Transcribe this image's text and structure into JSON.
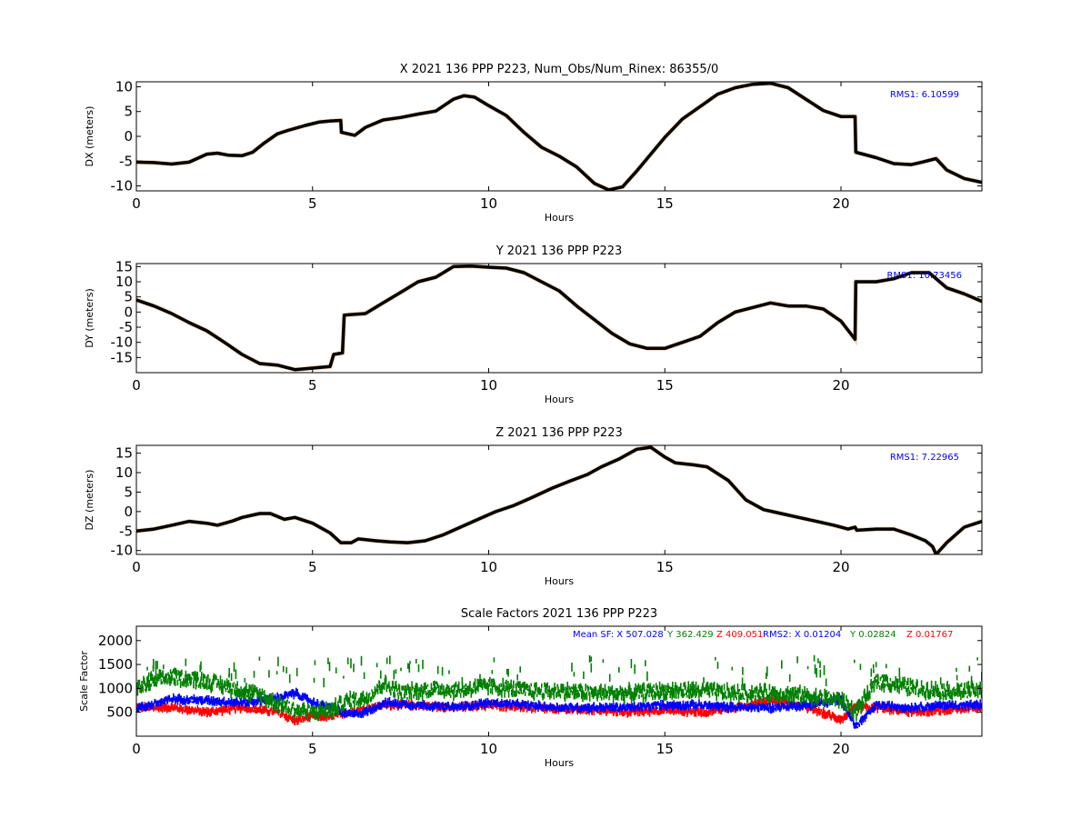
{
  "chart_data": [
    {
      "type": "line",
      "title": "X 2021 136 PPP  P223, Num_Obs/Num_Rinex: 86355/0",
      "xlabel": "Hours",
      "ylabel": "DX (meters)",
      "xlim": [
        0,
        24
      ],
      "ylim": [
        -11,
        11
      ],
      "xticks": [
        "0",
        "5",
        "10",
        "15",
        "20"
      ],
      "yticks": [
        "10",
        "5",
        "0",
        "-5",
        "-10"
      ],
      "annotation": {
        "text": "RMS1:  6.10599",
        "color": "#0000ff"
      },
      "series": [
        {
          "color": "#000000",
          "x": [
            0,
            0.5,
            1,
            1.5,
            2,
            2.3,
            2.6,
            3,
            3.3,
            3.6,
            4,
            4.3,
            4.8,
            5.2,
            5.5,
            5.8,
            5.82,
            6.2,
            6.5,
            7,
            7.5,
            8,
            8.5,
            9,
            9.3,
            9.6,
            10,
            10.5,
            11,
            11.5,
            12,
            12.5,
            13,
            13.4,
            13.8,
            14.2,
            14.6,
            15,
            15.5,
            16,
            16.5,
            17,
            17.5,
            18,
            18.5,
            19,
            19.5,
            20,
            20.4,
            20.42,
            21,
            21.5,
            22,
            22.3,
            22.7,
            23,
            23.5,
            24
          ],
          "y": [
            -5.2,
            -5.3,
            -5.6,
            -5.2,
            -3.6,
            -3.4,
            -3.8,
            -3.9,
            -3.2,
            -1.5,
            0.5,
            1.2,
            2.2,
            2.9,
            3.1,
            3.2,
            0.8,
            0.2,
            1.8,
            3.3,
            3.8,
            4.5,
            5.1,
            7.5,
            8.2,
            7.9,
            6.2,
            4.2,
            0.8,
            -2.2,
            -4,
            -6.2,
            -9.5,
            -10.8,
            -10.2,
            -7,
            -3.6,
            -0.2,
            3.5,
            6,
            8.5,
            9.8,
            10.5,
            10.7,
            9.8,
            7.5,
            5.2,
            4,
            4,
            -3.2,
            -4.3,
            -5.5,
            -5.7,
            -5.2,
            -4.5,
            -6.8,
            -8.5,
            -9.3
          ]
        }
      ]
    },
    {
      "type": "line",
      "title": "Y 2021 136 PPP  P223",
      "xlabel": "Hours",
      "ylabel": "DY (meters)",
      "xlim": [
        0,
        24
      ],
      "ylim": [
        -20,
        16
      ],
      "xticks": [
        "0",
        "5",
        "10",
        "15",
        "20"
      ],
      "yticks": [
        "15",
        "10",
        "5",
        "0",
        "-5",
        "-10",
        "-15"
      ],
      "annotation": {
        "text": "RMS1:  10.73456",
        "color": "#0000ff"
      },
      "series": [
        {
          "color": "#000000",
          "x": [
            0,
            0.5,
            1,
            1.5,
            2,
            2.5,
            3,
            3.5,
            4,
            4.5,
            5,
            5.5,
            5.6,
            5.85,
            5.9,
            6.5,
            7,
            7.5,
            8,
            8.5,
            9,
            9.5,
            10,
            10.5,
            11,
            11.5,
            12,
            12.5,
            13,
            13.5,
            14,
            14.5,
            15,
            15.5,
            16,
            16.5,
            17,
            17.5,
            18,
            18.5,
            19,
            19.5,
            20,
            20.4,
            20.42,
            21,
            21.5,
            22,
            22.5,
            23,
            23.5,
            24
          ],
          "y": [
            4,
            2,
            -0.5,
            -3.5,
            -6.2,
            -10,
            -14,
            -17,
            -17.5,
            -19,
            -18.5,
            -18,
            -14,
            -13.5,
            -1,
            -0.5,
            3,
            6.5,
            10,
            11.5,
            15,
            15.2,
            14.8,
            14.5,
            13,
            10,
            7,
            2,
            -2.5,
            -7,
            -10.5,
            -12,
            -12,
            -10,
            -8,
            -3.5,
            0,
            1.5,
            3,
            2,
            2,
            1,
            -3,
            -9,
            10,
            10,
            11,
            13,
            13,
            8,
            6,
            3.5
          ]
        }
      ]
    },
    {
      "type": "line",
      "title": "Z 2021 136 PPP  P223",
      "xlabel": "Hours",
      "ylabel": "DZ (meters)",
      "xlim": [
        0,
        24
      ],
      "ylim": [
        -11,
        17
      ],
      "xticks": [
        "0",
        "5",
        "10",
        "15",
        "20"
      ],
      "yticks": [
        "15",
        "10",
        "5",
        "0",
        "-5",
        "-10"
      ],
      "annotation": {
        "text": "RMS1:  7.22965",
        "color": "#0000ff"
      },
      "series": [
        {
          "color": "#000000",
          "x": [
            0,
            0.5,
            1,
            1.5,
            2,
            2.3,
            2.7,
            3,
            3.5,
            3.8,
            4.2,
            4.5,
            5,
            5.5,
            5.8,
            6.1,
            6.3,
            6.8,
            7.2,
            7.7,
            8.2,
            8.7,
            9.2,
            9.7,
            10.2,
            10.7,
            11.2,
            11.8,
            12.3,
            12.8,
            13.2,
            13.7,
            14.2,
            14.6,
            15,
            15.3,
            15.8,
            16.2,
            16.8,
            17.3,
            17.8,
            18.3,
            18.8,
            19.3,
            19.8,
            20.2,
            20.4,
            20.45,
            21,
            21.5,
            22,
            22.4,
            22.6,
            22.7,
            23,
            23.5,
            24
          ],
          "y": [
            -5,
            -4.5,
            -3.5,
            -2.5,
            -3,
            -3.5,
            -2.5,
            -1.5,
            -0.5,
            -0.5,
            -2,
            -1.5,
            -3,
            -5.5,
            -8,
            -8,
            -7,
            -7.5,
            -7.8,
            -8,
            -7.5,
            -6,
            -4,
            -2,
            0,
            1.5,
            3.5,
            6,
            7.8,
            9.5,
            11.5,
            13.5,
            16,
            16.5,
            14,
            12.5,
            12,
            11.5,
            8,
            3,
            0.5,
            -0.5,
            -1.5,
            -2.5,
            -3.5,
            -4.5,
            -4,
            -4.8,
            -4.5,
            -4.5,
            -6,
            -7.5,
            -9,
            -11,
            -8,
            -4,
            -2.5
          ]
        }
      ]
    },
    {
      "type": "scatter",
      "title": "Scale Factors 2021 136 PPP  P223",
      "xlabel": "Hours",
      "ylabel": "Scale Factor",
      "xlim": [
        0,
        24
      ],
      "ylim": [
        0,
        2300
      ],
      "xticks": [
        "0",
        "5",
        "10",
        "15",
        "20"
      ],
      "yticks": [
        "2000",
        "1500",
        "1000",
        "500"
      ],
      "annotations": [
        {
          "text": "Mean SF: X 507.028",
          "color": "#0000ff"
        },
        {
          "text": "Y 362.429",
          "color": "#008000"
        },
        {
          "text": "Z 409.051",
          "color": "#ff0000"
        },
        {
          "text": "RMS2: X  0.01204",
          "color": "#0000ff"
        },
        {
          "text": "Y  0.02824",
          "color": "#008000"
        },
        {
          "text": "Z  0.01767",
          "color": "#ff0000"
        }
      ],
      "series": [
        {
          "color": "#ff0000",
          "x": [
            0,
            1,
            2,
            3,
            4,
            4.5,
            5,
            5.5,
            6,
            7,
            8,
            9,
            10,
            11,
            12,
            13,
            14,
            15,
            16,
            17,
            18,
            19,
            20,
            20.4,
            21,
            22,
            23,
            24
          ],
          "y": [
            600,
            600,
            500,
            600,
            500,
            320,
            420,
            400,
            500,
            650,
            650,
            600,
            650,
            600,
            550,
            550,
            500,
            550,
            500,
            600,
            750,
            600,
            350,
            600,
            600,
            500,
            550,
            600
          ]
        },
        {
          "color": "#0000ff",
          "x": [
            0,
            1,
            2,
            3,
            4,
            4.5,
            5,
            5.5,
            6,
            6.5,
            7,
            8,
            9,
            10,
            11,
            12,
            13,
            14,
            15,
            16,
            17,
            18,
            19,
            20,
            20.4,
            21,
            22,
            23,
            24
          ],
          "y": [
            580,
            780,
            750,
            700,
            800,
            900,
            700,
            600,
            450,
            500,
            700,
            650,
            600,
            700,
            650,
            600,
            600,
            600,
            650,
            650,
            600,
            600,
            650,
            750,
            200,
            650,
            600,
            650,
            650
          ]
        },
        {
          "color": "#008000",
          "x": [
            0,
            0.5,
            1,
            1.5,
            2,
            2.5,
            3,
            3.5,
            4,
            4.5,
            5,
            5.5,
            6,
            6.5,
            7,
            7.5,
            8,
            8.5,
            9,
            10,
            11,
            12,
            13,
            14,
            15,
            16,
            17,
            18,
            19,
            20,
            20.4,
            21,
            21.5,
            22,
            23,
            24
          ],
          "y": [
            1000,
            1150,
            1250,
            1200,
            1150,
            1050,
            950,
            850,
            700,
            550,
            500,
            550,
            750,
            800,
            1100,
            900,
            950,
            1000,
            950,
            1050,
            950,
            950,
            900,
            900,
            950,
            950,
            900,
            900,
            850,
            750,
            500,
            1150,
            1100,
            1000,
            950,
            950
          ]
        }
      ]
    }
  ]
}
